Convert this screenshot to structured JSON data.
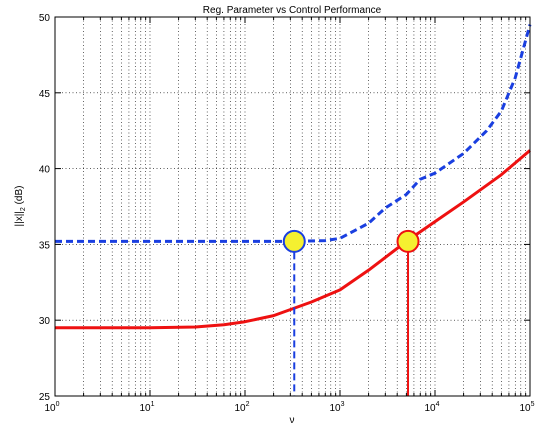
{
  "chart_data": {
    "type": "line",
    "title": "Reg. Parameter vs Control Performance",
    "xlabel": "ν",
    "ylabel_main": "||x||",
    "ylabel_sub": "2",
    "ylabel_unit": " (dB)",
    "xscale": "log",
    "xlim": [
      1,
      100000
    ],
    "ylim": [
      25,
      50
    ],
    "grid": true,
    "x_ticks": [
      {
        "value": 1,
        "base": "10",
        "exp": "0"
      },
      {
        "value": 10,
        "base": "10",
        "exp": "1"
      },
      {
        "value": 100,
        "base": "10",
        "exp": "2"
      },
      {
        "value": 1000,
        "base": "10",
        "exp": "3"
      },
      {
        "value": 10000,
        "base": "10",
        "exp": "4"
      },
      {
        "value": 100000,
        "base": "10",
        "exp": "5"
      }
    ],
    "y_ticks": [
      25,
      30,
      35,
      40,
      45,
      50
    ],
    "series": [
      {
        "color": "#ee1111",
        "style": "solid",
        "points": [
          [
            1,
            29.5
          ],
          [
            10,
            29.5
          ],
          [
            30,
            29.55
          ],
          [
            60,
            29.7
          ],
          [
            100,
            29.9
          ],
          [
            200,
            30.3
          ],
          [
            500,
            31.2
          ],
          [
            1000,
            32.0
          ],
          [
            2000,
            33.3
          ],
          [
            5000,
            35.2
          ],
          [
            10000,
            36.5
          ],
          [
            20000,
            37.8
          ],
          [
            50000,
            39.6
          ],
          [
            100000,
            41.2
          ]
        ]
      },
      {
        "color": "#1a3fe0",
        "style": "dashed",
        "points": [
          [
            1,
            35.2
          ],
          [
            100,
            35.2
          ],
          [
            330,
            35.2
          ],
          [
            700,
            35.25
          ],
          [
            1000,
            35.4
          ],
          [
            2000,
            36.4
          ],
          [
            3000,
            37.4
          ],
          [
            5000,
            38.3
          ],
          [
            7000,
            39.3
          ],
          [
            10000,
            39.7
          ],
          [
            20000,
            41.0
          ],
          [
            35000,
            42.5
          ],
          [
            50000,
            43.8
          ],
          [
            70000,
            46.0
          ],
          [
            100000,
            49.5
          ]
        ]
      }
    ],
    "markers": [
      {
        "x": 330,
        "y": 35.2,
        "fill": "#f5f030",
        "stroke": "#1a3fe0",
        "line_style": "dashed",
        "horizontal_to_left_axis": true
      },
      {
        "x": 5200,
        "y": 35.2,
        "fill": "#f5f030",
        "stroke": "#ee1111",
        "line_style": "solid",
        "horizontal_to_left_axis": false
      }
    ]
  }
}
